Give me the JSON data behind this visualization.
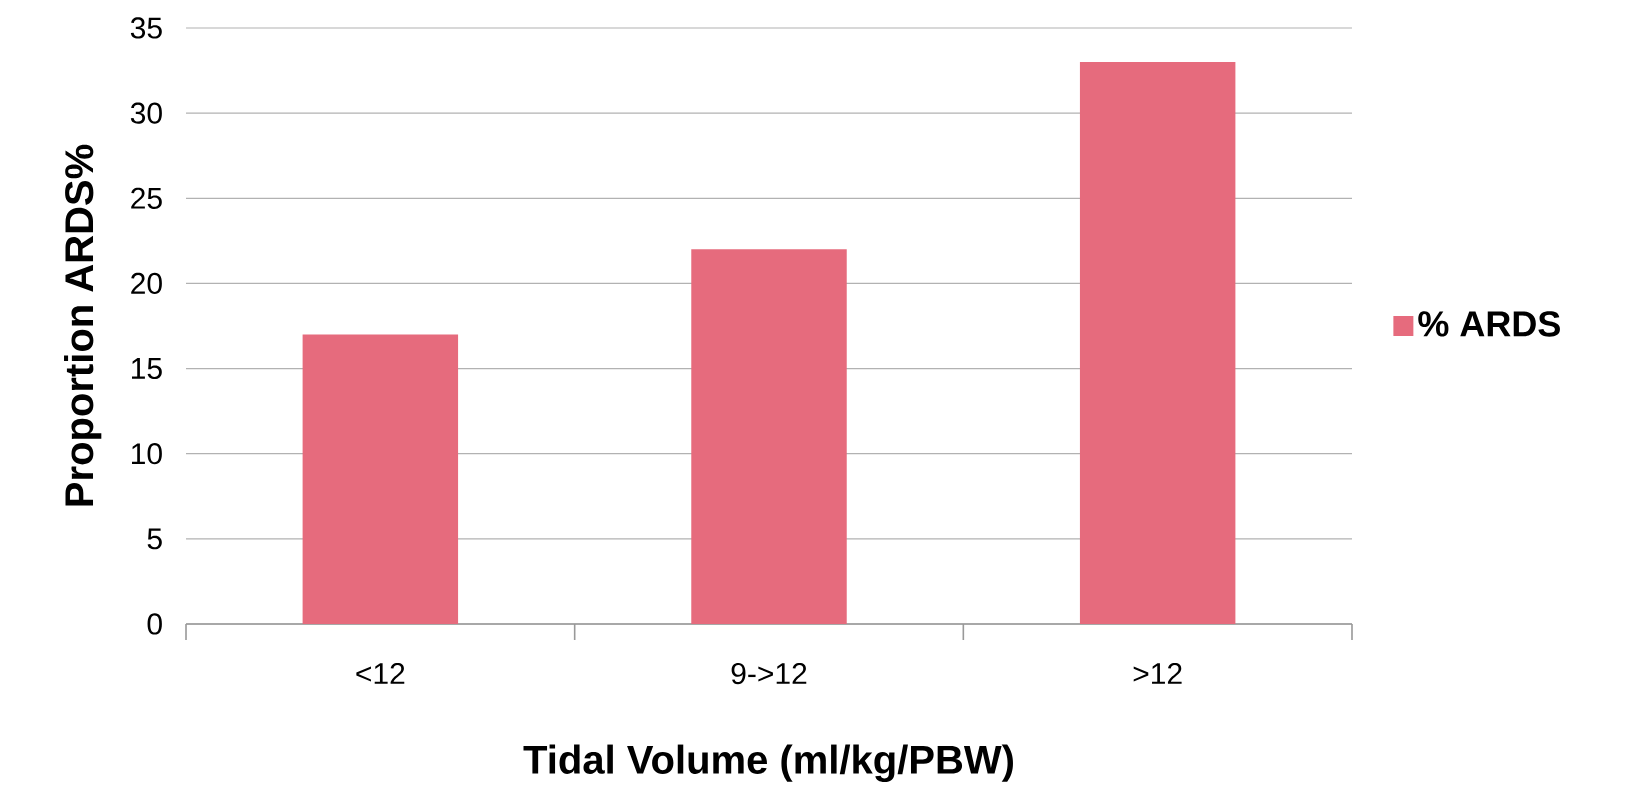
{
  "chart_data": {
    "type": "bar",
    "xlabel": "Tidal Volume (ml/kg/PBW)",
    "ylabel": "Proportion ARDS%",
    "categories": [
      "<12",
      "9->12",
      ">12"
    ],
    "series": [
      {
        "name": "% ARDS",
        "color": "#e66b7d",
        "values": [
          17,
          22,
          33
        ]
      }
    ],
    "ylim": [
      0,
      35
    ],
    "yticks": [
      0,
      5,
      10,
      15,
      20,
      25,
      30,
      35
    ],
    "grid": "y",
    "legend": "right"
  }
}
